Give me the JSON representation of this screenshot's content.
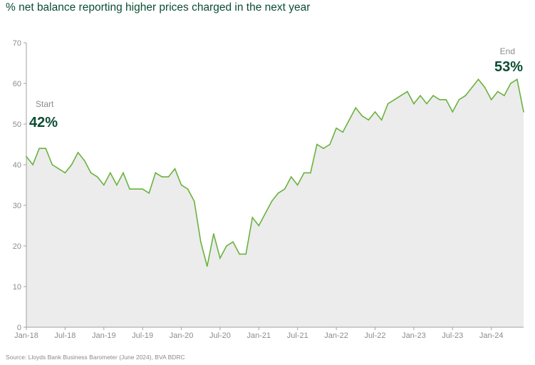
{
  "chart_data": {
    "type": "area",
    "title": "% net balance reporting higher prices charged in the next year",
    "source": "Source: Lloyds Bank Business Barometer (June 2024), BVA BDRC",
    "xlabel": "",
    "ylabel": "",
    "ylim": [
      0,
      70
    ],
    "yticks": [
      "0",
      "10",
      "20",
      "30",
      "40",
      "50",
      "60",
      "70"
    ],
    "xticks": [
      "Jan-18",
      "Jul-18",
      "Jan-19",
      "Jul-19",
      "Jan-20",
      "Jul-20",
      "Jan-21",
      "Jul-21",
      "Jan-22",
      "Jul-22",
      "Jan-23",
      "Jul-23",
      "Jan-24"
    ],
    "x_start": "Jan-18",
    "x_end": "Jun-24",
    "x_frequency": "monthly",
    "grid": false,
    "line_color": "#6ab23e",
    "fill_color": "#ececec",
    "values": [
      42,
      40,
      44,
      44,
      40,
      39,
      38,
      40,
      43,
      41,
      38,
      37,
      35,
      38,
      35,
      38,
      34,
      34,
      34,
      33,
      38,
      37,
      37,
      39,
      35,
      34,
      31,
      21,
      15,
      23,
      17,
      20,
      21,
      18,
      18,
      27,
      25,
      28,
      31,
      33,
      34,
      37,
      35,
      38,
      38,
      45,
      44,
      45,
      49,
      48,
      51,
      54,
      52,
      51,
      53,
      51,
      55,
      56,
      57,
      58,
      55,
      57,
      55,
      57,
      56,
      56,
      53,
      56,
      57,
      59,
      61,
      59,
      56,
      58,
      57,
      60,
      61,
      53
    ],
    "annotations": [
      {
        "label": "Start",
        "value": "42%"
      },
      {
        "label": "End",
        "value": "53%"
      }
    ],
    "annotation_color": "#0b4d33"
  }
}
